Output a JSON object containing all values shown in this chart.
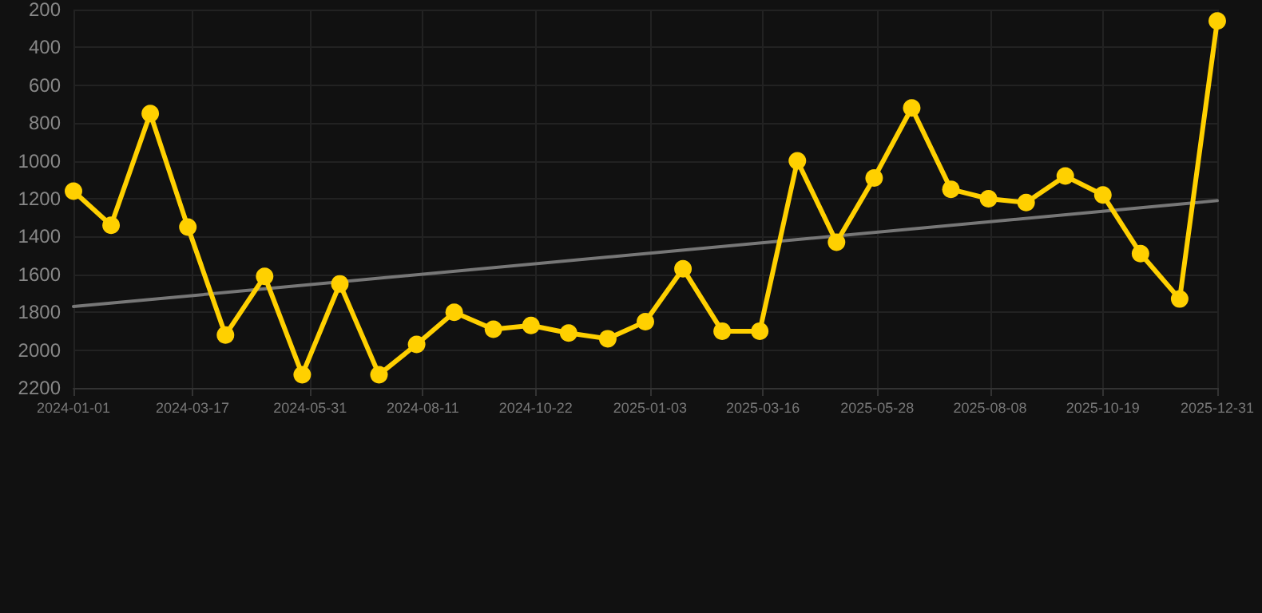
{
  "chart_data": {
    "type": "line",
    "x": [
      "2024-01-01",
      "2024-01-25",
      "2024-02-19",
      "2024-03-14",
      "2024-04-07",
      "2024-05-02",
      "2024-05-26",
      "2024-06-19",
      "2024-07-14",
      "2024-08-07",
      "2024-08-31",
      "2024-09-25",
      "2024-10-19",
      "2024-11-12",
      "2024-12-07",
      "2024-12-31",
      "2025-01-24",
      "2025-02-18",
      "2025-03-14",
      "2025-04-07",
      "2025-05-02",
      "2025-05-26",
      "2025-06-19",
      "2025-07-14",
      "2025-08-07",
      "2025-08-31",
      "2025-09-25",
      "2025-10-19",
      "2025-11-12",
      "2025-12-07",
      "2025-12-31"
    ],
    "series": [
      {
        "color": "#ffd000",
        "values": [
          1160,
          1340,
          750,
          1350,
          1920,
          1610,
          2130,
          1650,
          2130,
          1970,
          1800,
          1890,
          1870,
          1910,
          1940,
          1850,
          1570,
          1900,
          1900,
          1000,
          1430,
          1090,
          720,
          1150,
          1200,
          1220,
          1080,
          1180,
          1490,
          1730,
          260
        ]
      },
      {
        "type": "line",
        "color": "#777777",
        "x": [
          "2024-01-01",
          "2025-12-31"
        ],
        "values": [
          1770,
          1210
        ],
        "marker": "none"
      }
    ],
    "marker": "circle",
    "line_style": "solid",
    "xlim": [
      "2024-01-01",
      "2025-12-31"
    ],
    "xticks": [
      "2024-01-01",
      "2024-03-17",
      "2024-05-31",
      "2024-08-11",
      "2024-10-22",
      "2025-01-03",
      "2025-03-16",
      "2025-05-28",
      "2025-08-08",
      "2025-10-19",
      "2025-12-31"
    ],
    "ylim": [
      2200,
      200
    ],
    "yticks": [
      200,
      400,
      600,
      800,
      1000,
      1200,
      1400,
      1600,
      1800,
      2000,
      2200
    ],
    "grid": true
  }
}
